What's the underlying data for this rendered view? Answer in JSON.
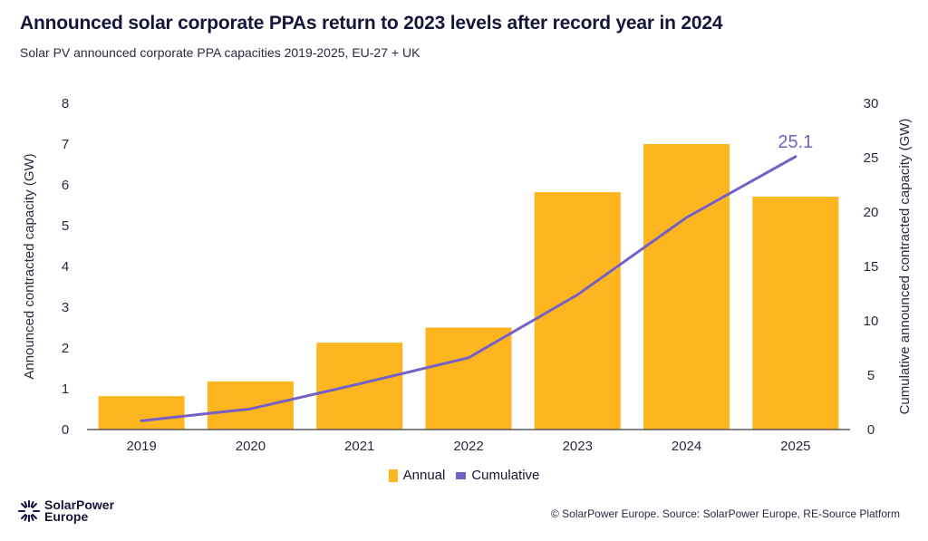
{
  "header": {
    "title": "Announced solar corporate PPAs return to 2023 levels after record year in 2024",
    "subtitle": "Solar PV announced corporate PPA capacities 2019-2025, EU-27 + UK"
  },
  "colors": {
    "annual": "#fdb61f",
    "cumulative": "#7460c6",
    "axis": "#3a3a4a",
    "text": "#16153a"
  },
  "chart_data": {
    "type": "bar",
    "title": "Announced solar corporate PPAs return to 2023 levels after record year in 2024",
    "subtitle": "Solar PV announced corporate PPA capacities 2019-2025, EU-27 + UK",
    "categories": [
      "2019",
      "2020",
      "2021",
      "2022",
      "2023",
      "2024",
      "2025"
    ],
    "series": [
      {
        "name": "Annual",
        "type": "bar",
        "axis": "left",
        "values": [
          0.82,
          1.18,
          2.13,
          2.5,
          5.82,
          7.0,
          5.71
        ]
      },
      {
        "name": "Cumulative",
        "type": "line",
        "axis": "right",
        "values": [
          0.8,
          1.9,
          4.2,
          6.6,
          12.4,
          19.5,
          25.1
        ]
      }
    ],
    "ylabel": "Announced contracted capacity (GW)",
    "ylabel_right": "Cumulative announced contracted capacity (GW)",
    "ylim": [
      0,
      8
    ],
    "ylim_right": [
      0,
      30
    ],
    "yticks": [
      "0",
      "1",
      "2",
      "3",
      "4",
      "5",
      "6",
      "7",
      "8"
    ],
    "yticks_right": [
      "0",
      "5",
      "10",
      "15",
      "20",
      "25",
      "30"
    ],
    "annotations": [
      {
        "series": "Cumulative",
        "category": "2025",
        "text": "25.1"
      }
    ],
    "grid": false,
    "legend": "bottom-center"
  },
  "legend": {
    "annual": "Annual",
    "cumulative": "Cumulative"
  },
  "footer": {
    "logo_line1": "SolarPower",
    "logo_line2": "Europe",
    "source": "© SolarPower Europe. Source: SolarPower Europe, RE-Source Platform"
  }
}
